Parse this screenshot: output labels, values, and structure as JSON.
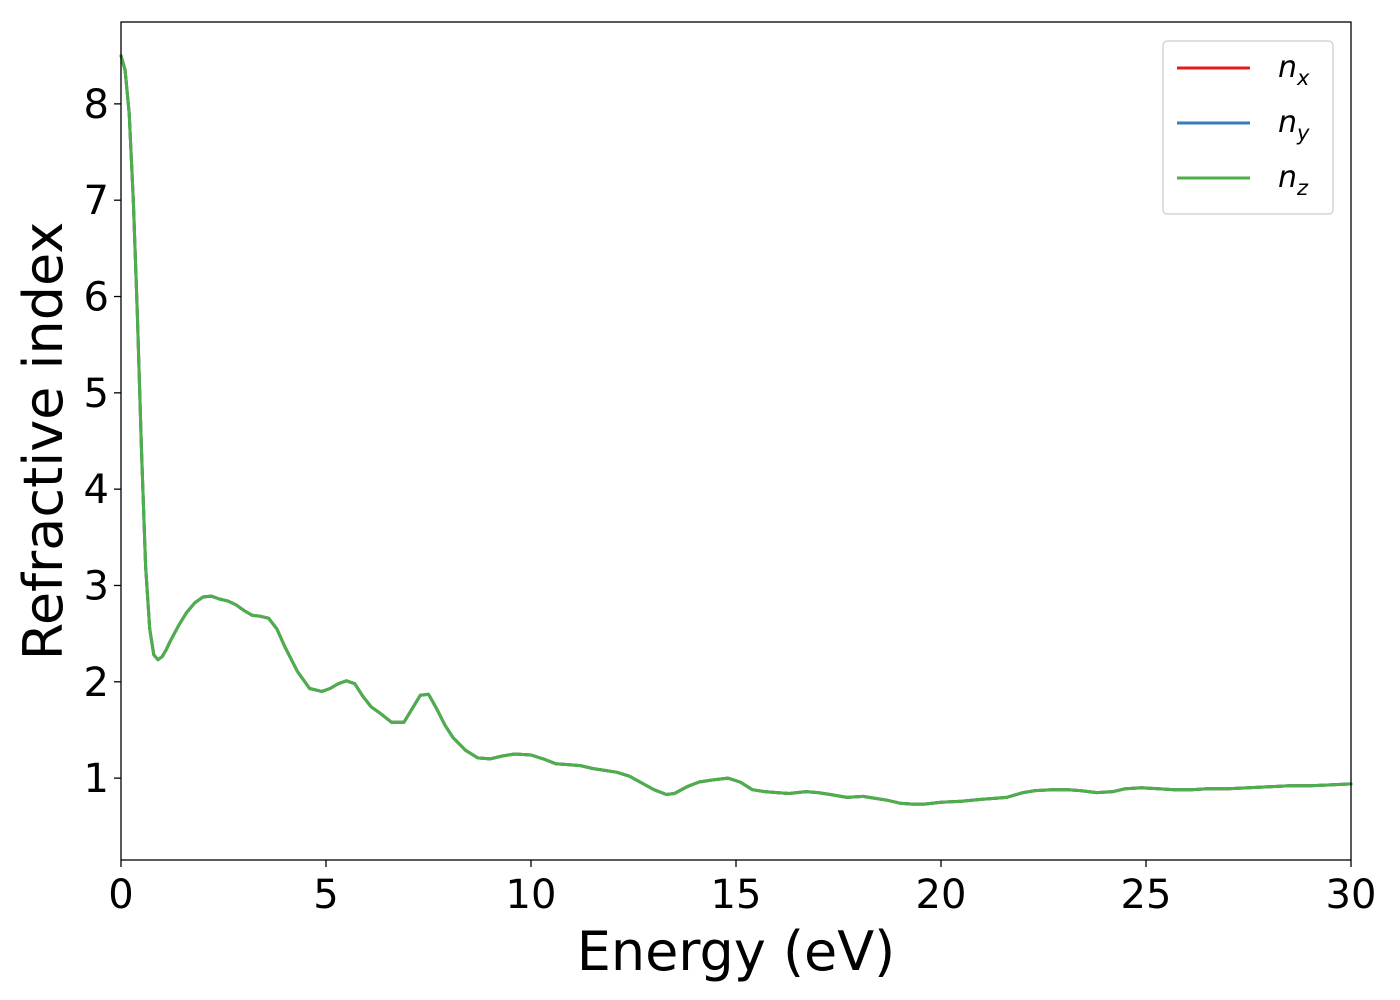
{
  "chart_data": {
    "type": "line",
    "title": "",
    "xlabel": "Energy (eV)",
    "ylabel": "Refractive index",
    "xlim": [
      0,
      30
    ],
    "ylim": [
      0.15,
      8.85
    ],
    "xticks": [
      "0",
      "5",
      "10",
      "15",
      "20",
      "25",
      "30"
    ],
    "yticks": [
      "1",
      "2",
      "3",
      "4",
      "5",
      "6",
      "7",
      "8"
    ],
    "grid": false,
    "legend_position": "top-right",
    "x": [
      0,
      0.1,
      0.2,
      0.3,
      0.4,
      0.5,
      0.6,
      0.7,
      0.8,
      0.9,
      1.0,
      1.1,
      1.2,
      1.4,
      1.6,
      1.8,
      2.0,
      2.2,
      2.4,
      2.6,
      2.8,
      3.0,
      3.2,
      3.4,
      3.6,
      3.8,
      4.0,
      4.3,
      4.6,
      4.9,
      5.1,
      5.3,
      5.5,
      5.7,
      5.9,
      6.1,
      6.3,
      6.6,
      6.9,
      7.1,
      7.3,
      7.5,
      7.7,
      7.9,
      8.1,
      8.4,
      8.7,
      9.0,
      9.3,
      9.6,
      10.0,
      10.3,
      10.6,
      10.9,
      11.2,
      11.5,
      11.8,
      12.1,
      12.4,
      12.7,
      13.0,
      13.3,
      13.5,
      13.8,
      14.1,
      14.4,
      14.8,
      15.1,
      15.4,
      15.7,
      16.0,
      16.3,
      16.7,
      17.0,
      17.3,
      17.7,
      18.1,
      18.4,
      18.7,
      19.0,
      19.3,
      19.6,
      20.0,
      20.5,
      21.0,
      21.3,
      21.6,
      22.0,
      22.3,
      22.7,
      23.1,
      23.4,
      23.8,
      24.2,
      24.5,
      24.9,
      25.3,
      25.7,
      26.1,
      26.5,
      27.0,
      27.5,
      28.0,
      28.5,
      29.0,
      29.5,
      30.0
    ],
    "series": [
      {
        "name": "n_x",
        "label": "n",
        "subscript": "x",
        "color": "#e41a1c",
        "y": [
          8.5,
          8.35,
          7.9,
          7.0,
          5.8,
          4.4,
          3.2,
          2.55,
          2.28,
          2.23,
          2.26,
          2.33,
          2.42,
          2.58,
          2.72,
          2.82,
          2.88,
          2.89,
          2.86,
          2.84,
          2.8,
          2.74,
          2.69,
          2.68,
          2.66,
          2.55,
          2.36,
          2.11,
          1.93,
          1.9,
          1.93,
          1.98,
          2.01,
          1.98,
          1.85,
          1.74,
          1.68,
          1.58,
          1.58,
          1.72,
          1.86,
          1.87,
          1.72,
          1.55,
          1.42,
          1.29,
          1.21,
          1.2,
          1.23,
          1.25,
          1.24,
          1.2,
          1.15,
          1.14,
          1.13,
          1.1,
          1.08,
          1.06,
          1.02,
          0.95,
          0.88,
          0.83,
          0.84,
          0.91,
          0.96,
          0.98,
          1.0,
          0.96,
          0.88,
          0.86,
          0.85,
          0.84,
          0.86,
          0.85,
          0.83,
          0.8,
          0.81,
          0.79,
          0.77,
          0.74,
          0.73,
          0.73,
          0.75,
          0.76,
          0.78,
          0.79,
          0.8,
          0.85,
          0.87,
          0.88,
          0.88,
          0.87,
          0.85,
          0.86,
          0.89,
          0.9,
          0.89,
          0.88,
          0.88,
          0.89,
          0.89,
          0.9,
          0.91,
          0.92,
          0.92,
          0.93,
          0.94
        ]
      },
      {
        "name": "n_y",
        "label": "n",
        "subscript": "y",
        "color": "#377eb8",
        "y": [
          8.5,
          8.35,
          7.9,
          7.0,
          5.8,
          4.4,
          3.2,
          2.55,
          2.28,
          2.23,
          2.26,
          2.33,
          2.42,
          2.58,
          2.72,
          2.82,
          2.88,
          2.89,
          2.86,
          2.84,
          2.8,
          2.74,
          2.69,
          2.68,
          2.66,
          2.55,
          2.36,
          2.11,
          1.93,
          1.9,
          1.93,
          1.98,
          2.01,
          1.98,
          1.85,
          1.74,
          1.68,
          1.58,
          1.58,
          1.72,
          1.86,
          1.87,
          1.72,
          1.55,
          1.42,
          1.29,
          1.21,
          1.2,
          1.23,
          1.25,
          1.24,
          1.2,
          1.15,
          1.14,
          1.13,
          1.1,
          1.08,
          1.06,
          1.02,
          0.95,
          0.88,
          0.83,
          0.84,
          0.91,
          0.96,
          0.98,
          1.0,
          0.96,
          0.88,
          0.86,
          0.85,
          0.84,
          0.86,
          0.85,
          0.83,
          0.8,
          0.81,
          0.79,
          0.77,
          0.74,
          0.73,
          0.73,
          0.75,
          0.76,
          0.78,
          0.79,
          0.8,
          0.85,
          0.87,
          0.88,
          0.88,
          0.87,
          0.85,
          0.86,
          0.89,
          0.9,
          0.89,
          0.88,
          0.88,
          0.89,
          0.89,
          0.9,
          0.91,
          0.92,
          0.92,
          0.93,
          0.94
        ]
      },
      {
        "name": "n_z",
        "label": "n",
        "subscript": "z",
        "color": "#4daf4a",
        "y": [
          8.5,
          8.35,
          7.9,
          7.0,
          5.8,
          4.4,
          3.2,
          2.55,
          2.28,
          2.23,
          2.26,
          2.33,
          2.42,
          2.58,
          2.72,
          2.82,
          2.88,
          2.89,
          2.86,
          2.84,
          2.8,
          2.74,
          2.69,
          2.68,
          2.66,
          2.55,
          2.36,
          2.11,
          1.93,
          1.9,
          1.93,
          1.98,
          2.01,
          1.98,
          1.85,
          1.74,
          1.68,
          1.58,
          1.58,
          1.72,
          1.86,
          1.87,
          1.72,
          1.55,
          1.42,
          1.29,
          1.21,
          1.2,
          1.23,
          1.25,
          1.24,
          1.2,
          1.15,
          1.14,
          1.13,
          1.1,
          1.08,
          1.06,
          1.02,
          0.95,
          0.88,
          0.83,
          0.84,
          0.91,
          0.96,
          0.98,
          1.0,
          0.96,
          0.88,
          0.86,
          0.85,
          0.84,
          0.86,
          0.85,
          0.83,
          0.8,
          0.81,
          0.79,
          0.77,
          0.74,
          0.73,
          0.73,
          0.75,
          0.76,
          0.78,
          0.79,
          0.8,
          0.85,
          0.87,
          0.88,
          0.88,
          0.87,
          0.85,
          0.86,
          0.89,
          0.9,
          0.89,
          0.88,
          0.88,
          0.89,
          0.89,
          0.9,
          0.91,
          0.92,
          0.92,
          0.93,
          0.94
        ]
      }
    ]
  }
}
